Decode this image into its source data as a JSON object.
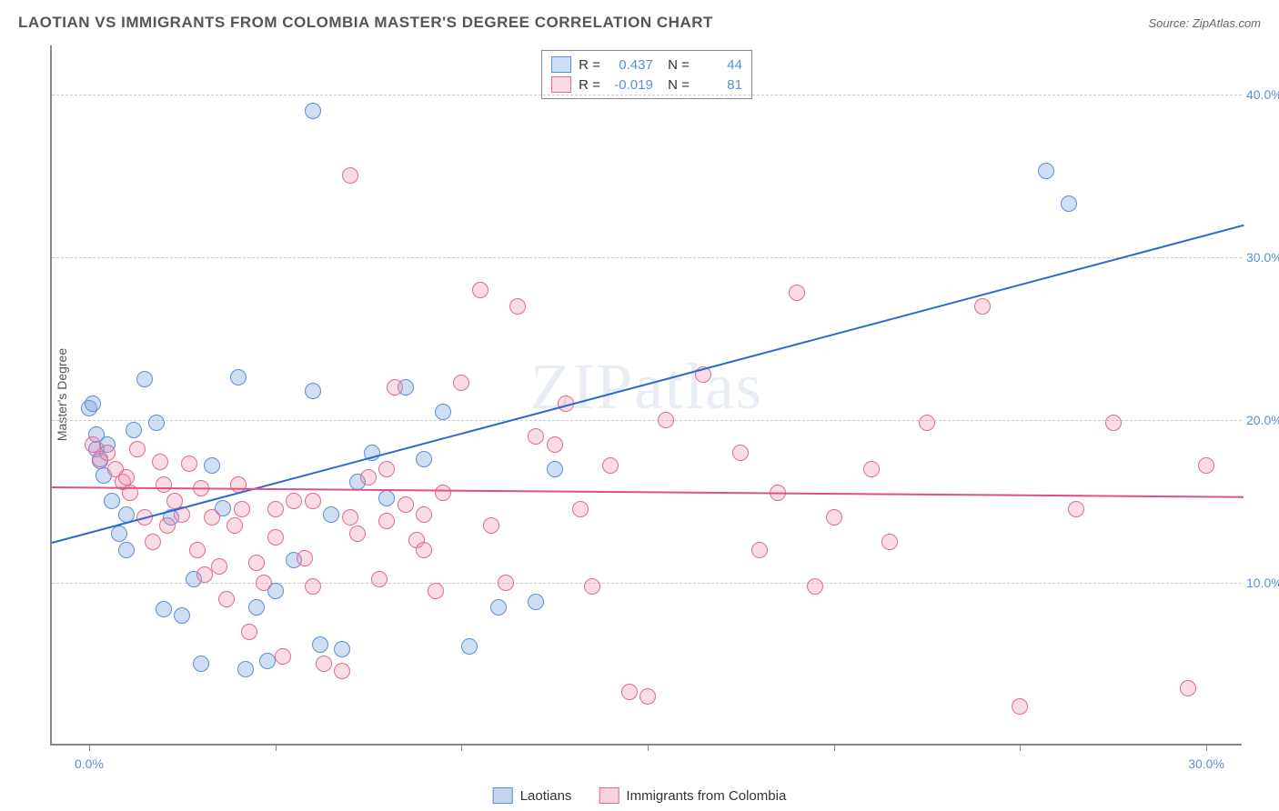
{
  "header": {
    "title": "LAOTIAN VS IMMIGRANTS FROM COLOMBIA MASTER'S DEGREE CORRELATION CHART",
    "source_label": "Source: ZipAtlas.com"
  },
  "chart": {
    "type": "scatter",
    "y_axis_title": "Master's Degree",
    "background_color": "#ffffff",
    "grid_color": "#cccccc",
    "axis_color": "#888888",
    "tick_label_color": "#5b8fd6",
    "xlim": [
      -1,
      31
    ],
    "ylim": [
      0,
      43
    ],
    "x_ticks": [
      0,
      5,
      10,
      15,
      20,
      25,
      30
    ],
    "x_tick_labels_shown": {
      "0": "0.0%",
      "30": "30.0%"
    },
    "y_gridlines": [
      10,
      20,
      30,
      40
    ],
    "y_tick_labels": {
      "10": "10.0%",
      "20": "20.0%",
      "30": "30.0%",
      "40": "40.0%"
    },
    "watermark": "ZIPatlas",
    "series": [
      {
        "name": "Laotians",
        "fill_color": "rgba(120,160,220,0.35)",
        "stroke_color": "#5b8fd6",
        "marker_radius": 9,
        "stats": {
          "R": "0.437",
          "N": "44"
        },
        "trend": {
          "x1": -1,
          "y1": 12.5,
          "x2": 31,
          "y2": 32.0,
          "color": "#2b6ad0",
          "width": 2
        },
        "points": [
          [
            0.0,
            20.7
          ],
          [
            0.1,
            21.0
          ],
          [
            0.2,
            19.1
          ],
          [
            0.2,
            18.2
          ],
          [
            0.3,
            17.5
          ],
          [
            0.4,
            16.6
          ],
          [
            0.6,
            15.0
          ],
          [
            0.8,
            13.0
          ],
          [
            1.0,
            12.0
          ],
          [
            1.2,
            19.4
          ],
          [
            1.5,
            22.5
          ],
          [
            1.8,
            19.8
          ],
          [
            2.0,
            8.4
          ],
          [
            2.2,
            14.0
          ],
          [
            2.5,
            8.0
          ],
          [
            2.8,
            10.2
          ],
          [
            3.0,
            5.0
          ],
          [
            3.3,
            17.2
          ],
          [
            3.6,
            14.6
          ],
          [
            4.0,
            22.6
          ],
          [
            4.2,
            4.7
          ],
          [
            4.5,
            8.5
          ],
          [
            4.8,
            5.2
          ],
          [
            5.0,
            9.5
          ],
          [
            5.5,
            11.4
          ],
          [
            6.0,
            39.0
          ],
          [
            6.0,
            21.8
          ],
          [
            6.2,
            6.2
          ],
          [
            6.5,
            14.2
          ],
          [
            6.8,
            5.9
          ],
          [
            7.2,
            16.2
          ],
          [
            7.6,
            18.0
          ],
          [
            8.0,
            15.2
          ],
          [
            8.5,
            22.0
          ],
          [
            9.0,
            17.6
          ],
          [
            9.5,
            20.5
          ],
          [
            10.2,
            6.1
          ],
          [
            11.0,
            8.5
          ],
          [
            12.0,
            8.8
          ],
          [
            12.5,
            17.0
          ],
          [
            25.7,
            35.3
          ],
          [
            26.3,
            33.3
          ],
          [
            0.5,
            18.5
          ],
          [
            1.0,
            14.2
          ]
        ]
      },
      {
        "name": "Immigrants from Colombia",
        "fill_color": "rgba(240,140,170,0.30)",
        "stroke_color": "#e06b95",
        "marker_radius": 9,
        "stats": {
          "R": "-0.019",
          "N": "81"
        },
        "trend": {
          "x1": -1,
          "y1": 15.9,
          "x2": 31,
          "y2": 15.3,
          "color": "#e05080",
          "width": 2
        },
        "points": [
          [
            0.1,
            18.5
          ],
          [
            0.3,
            17.6
          ],
          [
            0.5,
            18.0
          ],
          [
            0.7,
            17.0
          ],
          [
            0.9,
            16.2
          ],
          [
            1.1,
            15.5
          ],
          [
            1.3,
            18.2
          ],
          [
            1.5,
            14.0
          ],
          [
            1.7,
            12.5
          ],
          [
            1.9,
            17.4
          ],
          [
            2.1,
            13.5
          ],
          [
            2.3,
            15.0
          ],
          [
            2.5,
            14.2
          ],
          [
            2.7,
            17.3
          ],
          [
            2.9,
            12.0
          ],
          [
            3.1,
            10.5
          ],
          [
            3.3,
            14.0
          ],
          [
            3.5,
            11.0
          ],
          [
            3.7,
            9.0
          ],
          [
            3.9,
            13.5
          ],
          [
            4.1,
            14.5
          ],
          [
            4.3,
            7.0
          ],
          [
            4.5,
            11.2
          ],
          [
            4.7,
            10.0
          ],
          [
            5.0,
            12.8
          ],
          [
            5.2,
            5.5
          ],
          [
            5.5,
            15.0
          ],
          [
            5.8,
            11.5
          ],
          [
            6.0,
            9.8
          ],
          [
            6.3,
            5.0
          ],
          [
            6.8,
            4.6
          ],
          [
            7.0,
            35.0
          ],
          [
            7.2,
            13.0
          ],
          [
            7.5,
            16.5
          ],
          [
            7.8,
            10.2
          ],
          [
            8.0,
            17.0
          ],
          [
            8.2,
            22.0
          ],
          [
            8.5,
            14.8
          ],
          [
            8.8,
            12.6
          ],
          [
            9.0,
            12.0
          ],
          [
            9.3,
            9.5
          ],
          [
            9.5,
            15.5
          ],
          [
            10.0,
            22.3
          ],
          [
            10.5,
            28.0
          ],
          [
            10.8,
            13.5
          ],
          [
            11.2,
            10.0
          ],
          [
            11.5,
            27.0
          ],
          [
            12.0,
            19.0
          ],
          [
            12.5,
            18.5
          ],
          [
            12.8,
            21.0
          ],
          [
            13.2,
            14.5
          ],
          [
            13.5,
            9.8
          ],
          [
            14.0,
            17.2
          ],
          [
            14.5,
            3.3
          ],
          [
            15.0,
            3.0
          ],
          [
            15.5,
            20.0
          ],
          [
            16.5,
            22.8
          ],
          [
            17.5,
            18.0
          ],
          [
            18.0,
            12.0
          ],
          [
            18.5,
            15.5
          ],
          [
            19.0,
            27.8
          ],
          [
            19.5,
            9.8
          ],
          [
            20.0,
            14.0
          ],
          [
            21.0,
            17.0
          ],
          [
            21.5,
            12.5
          ],
          [
            22.5,
            19.8
          ],
          [
            24.0,
            27.0
          ],
          [
            25.0,
            2.4
          ],
          [
            26.5,
            14.5
          ],
          [
            27.5,
            19.8
          ],
          [
            29.5,
            3.5
          ],
          [
            30.0,
            17.2
          ],
          [
            3.0,
            15.8
          ],
          [
            4.0,
            16.0
          ],
          [
            5.0,
            14.5
          ],
          [
            6.0,
            15.0
          ],
          [
            7.0,
            14.0
          ],
          [
            8.0,
            13.8
          ],
          [
            9.0,
            14.2
          ],
          [
            1.0,
            16.5
          ],
          [
            2.0,
            16.0
          ]
        ]
      }
    ],
    "bottom_legend": [
      {
        "label": "Laotians",
        "fill": "rgba(120,160,220,0.45)",
        "stroke": "#5b8fd6"
      },
      {
        "label": "Immigrants from Colombia",
        "fill": "rgba(240,140,170,0.40)",
        "stroke": "#e06b95"
      }
    ]
  }
}
